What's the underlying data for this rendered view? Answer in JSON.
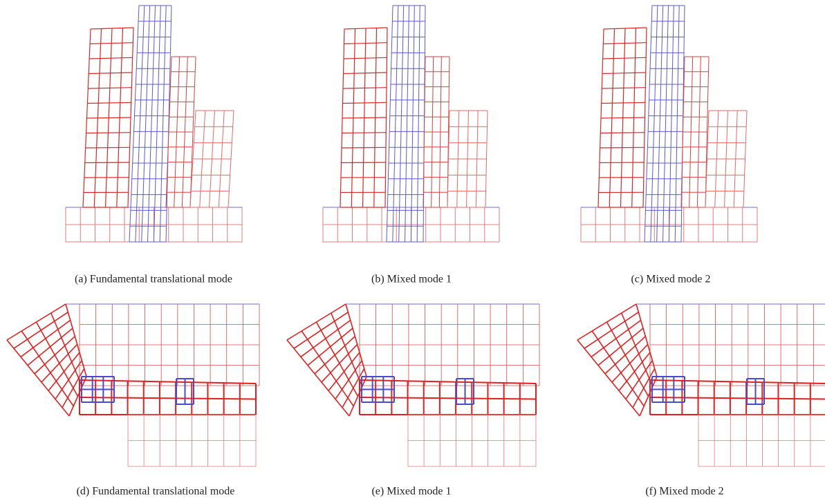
{
  "captions": [
    "(a)  Fundamental translational mode",
    "(b)  Mixed mode 1",
    "(c)  Mixed mode 2",
    "(d)  Fundamental translational mode",
    "(e)  Mixed mode 1",
    "(f)  Mixed mode 2"
  ]
}
